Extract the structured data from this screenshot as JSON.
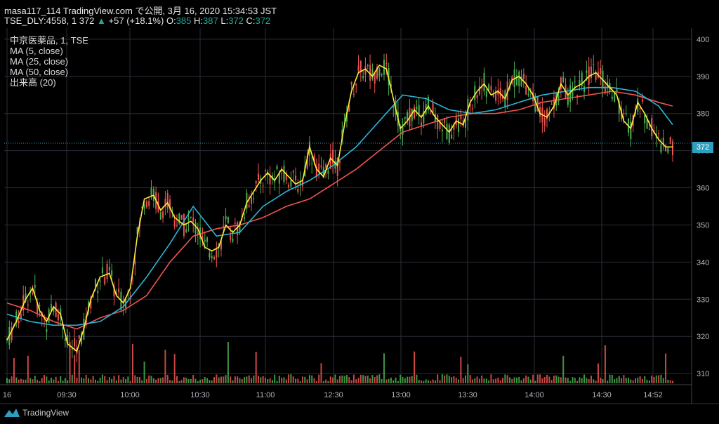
{
  "header": {
    "line1": "masa117_114 TradingView.com で公開, 3月 16, 2020 15:34:53 JST",
    "symbol_prefix": "TSE_DLY:4558, 1 372",
    "arrow": "▲",
    "change": "+57 (+18.1%)",
    "o_label": "O:",
    "o_value": "385",
    "h_label": "H:",
    "h_value": "387",
    "l_label": "L:",
    "l_value": "372",
    "c_label": "C:",
    "c_value": "372"
  },
  "legend": {
    "symbol": "中京医薬品, 1, TSE",
    "ma5": "MA (5, close)",
    "ma25": "MA (25, close)",
    "ma50": "MA (50, close)",
    "volume": "出来高 (20)"
  },
  "last_price_label": "372",
  "footer": {
    "brand": "TradingView"
  },
  "colors": {
    "up": "#4caf50",
    "down": "#ef5350",
    "ma5": "#ffeb3b",
    "ma25": "#29b6d6",
    "ma50": "#ef5350",
    "grid": "#2a2e39",
    "axis_text": "#b2b5be",
    "price_line": "#2f9fbf"
  },
  "chart_data": {
    "type": "candlestick",
    "y_ticks": [
      310,
      320,
      330,
      340,
      350,
      360,
      370,
      380,
      390,
      400
    ],
    "ylim": [
      307,
      403
    ],
    "x_tick_labels": [
      "16",
      "09:30",
      "10:00",
      "10:30",
      "11:00",
      "12:30",
      "13:00",
      "13:30",
      "14:00",
      "14:30",
      "14:52"
    ],
    "last_price": 372,
    "ma5_points": [
      [
        0,
        319
      ],
      [
        4,
        324
      ],
      [
        8,
        330
      ],
      [
        11,
        333
      ],
      [
        14,
        327
      ],
      [
        17,
        324
      ],
      [
        20,
        328
      ],
      [
        23,
        326
      ],
      [
        26,
        318
      ],
      [
        30,
        316
      ],
      [
        33,
        322
      ],
      [
        36,
        330
      ],
      [
        40,
        336
      ],
      [
        44,
        337
      ],
      [
        47,
        331
      ],
      [
        50,
        329
      ],
      [
        53,
        333
      ],
      [
        56,
        347
      ],
      [
        59,
        357
      ],
      [
        63,
        358
      ],
      [
        66,
        354
      ],
      [
        69,
        356
      ],
      [
        72,
        352
      ],
      [
        76,
        350
      ],
      [
        79,
        351
      ],
      [
        82,
        349
      ],
      [
        85,
        344
      ],
      [
        88,
        343
      ],
      [
        91,
        344
      ],
      [
        94,
        350
      ],
      [
        97,
        348
      ],
      [
        100,
        350
      ],
      [
        103,
        356
      ],
      [
        106,
        359
      ],
      [
        109,
        362
      ],
      [
        112,
        364
      ],
      [
        115,
        362
      ],
      [
        118,
        365
      ],
      [
        121,
        363
      ],
      [
        124,
        361
      ],
      [
        127,
        362
      ],
      [
        130,
        371
      ],
      [
        133,
        365
      ],
      [
        136,
        363
      ],
      [
        139,
        368
      ],
      [
        142,
        366
      ],
      [
        145,
        377
      ],
      [
        148,
        386
      ],
      [
        151,
        391
      ],
      [
        154,
        392
      ],
      [
        157,
        390
      ],
      [
        160,
        393
      ],
      [
        163,
        392
      ],
      [
        166,
        384
      ],
      [
        169,
        376
      ],
      [
        172,
        378
      ],
      [
        175,
        381
      ],
      [
        178,
        379
      ],
      [
        181,
        382
      ],
      [
        184,
        379
      ],
      [
        187,
        377
      ],
      [
        190,
        375
      ],
      [
        193,
        378
      ],
      [
        196,
        377
      ],
      [
        199,
        383
      ],
      [
        202,
        386
      ],
      [
        205,
        388
      ],
      [
        208,
        385
      ],
      [
        211,
        386
      ],
      [
        214,
        384
      ],
      [
        217,
        389
      ],
      [
        220,
        390
      ],
      [
        223,
        388
      ],
      [
        226,
        385
      ],
      [
        229,
        380
      ],
      [
        232,
        379
      ],
      [
        235,
        382
      ],
      [
        238,
        388
      ],
      [
        241,
        385
      ],
      [
        244,
        387
      ],
      [
        247,
        388
      ],
      [
        250,
        390
      ],
      [
        253,
        391
      ],
      [
        256,
        389
      ],
      [
        259,
        387
      ],
      [
        262,
        385
      ],
      [
        265,
        378
      ],
      [
        268,
        376
      ],
      [
        271,
        383
      ],
      [
        274,
        380
      ],
      [
        277,
        376
      ],
      [
        280,
        373
      ],
      [
        283,
        371
      ],
      [
        286,
        371
      ]
    ],
    "ma25_points": [
      [
        0,
        326
      ],
      [
        10,
        324
      ],
      [
        20,
        323
      ],
      [
        30,
        323
      ],
      [
        40,
        324
      ],
      [
        50,
        328
      ],
      [
        60,
        336
      ],
      [
        70,
        345
      ],
      [
        80,
        355
      ],
      [
        90,
        347
      ],
      [
        100,
        348
      ],
      [
        110,
        355
      ],
      [
        120,
        359
      ],
      [
        130,
        362
      ],
      [
        140,
        366
      ],
      [
        150,
        371
      ],
      [
        160,
        378
      ],
      [
        170,
        385
      ],
      [
        180,
        384
      ],
      [
        190,
        381
      ],
      [
        200,
        380
      ],
      [
        210,
        381
      ],
      [
        220,
        383
      ],
      [
        230,
        385
      ],
      [
        240,
        386
      ],
      [
        250,
        387
      ],
      [
        260,
        387
      ],
      [
        270,
        386
      ],
      [
        280,
        382
      ],
      [
        286,
        377
      ]
    ],
    "ma50_points": [
      [
        0,
        329
      ],
      [
        10,
        327
      ],
      [
        20,
        324
      ],
      [
        30,
        322
      ],
      [
        40,
        325
      ],
      [
        50,
        327
      ],
      [
        60,
        331
      ],
      [
        70,
        340
      ],
      [
        80,
        347
      ],
      [
        90,
        349
      ],
      [
        100,
        350
      ],
      [
        110,
        352
      ],
      [
        120,
        355
      ],
      [
        130,
        357
      ],
      [
        140,
        361
      ],
      [
        150,
        365
      ],
      [
        160,
        370
      ],
      [
        170,
        375
      ],
      [
        180,
        377
      ],
      [
        190,
        379
      ],
      [
        200,
        380
      ],
      [
        210,
        380
      ],
      [
        220,
        381
      ],
      [
        230,
        383
      ],
      [
        240,
        384
      ],
      [
        250,
        385
      ],
      [
        260,
        386
      ],
      [
        270,
        385
      ],
      [
        280,
        383
      ],
      [
        286,
        382
      ]
    ],
    "series_note_x_range": [
      0,
      286
    ]
  }
}
